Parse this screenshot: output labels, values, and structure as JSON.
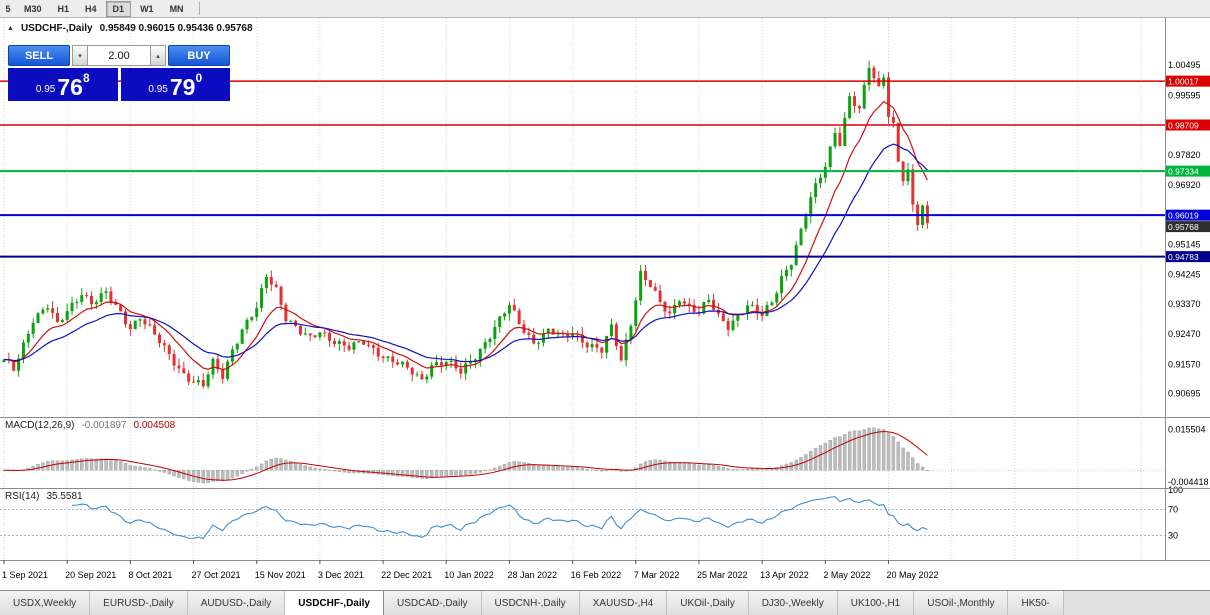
{
  "toolbar": {
    "timeframes": [
      {
        "label": "5",
        "active": false
      },
      {
        "label": "M30",
        "active": false
      },
      {
        "label": "H1",
        "active": false
      },
      {
        "label": "H4",
        "active": false
      },
      {
        "label": "D1",
        "active": true
      },
      {
        "label": "W1",
        "active": false
      },
      {
        "label": "MN",
        "active": false
      }
    ]
  },
  "chart": {
    "title_symbol": "USDCHF-,Daily",
    "title_ohlc": "0.95849 0.96015 0.95436 0.95768",
    "collapse_icon": "▲"
  },
  "trade_panel": {
    "sell_label": "SELL",
    "buy_label": "BUY",
    "lot_size": "2.00",
    "lot_decrease_icon": "▾",
    "lot_increase_icon": "▴",
    "sell_price_prefix": "0.95",
    "sell_price_big": "76",
    "sell_price_sup": "8",
    "buy_price_prefix": "0.95",
    "buy_price_big": "79",
    "buy_price_sup": "0"
  },
  "chart_data": {
    "type": "candlestick",
    "symbol": "USDCHF-",
    "period": "Daily",
    "ohlc_display": {
      "open": "0.95849",
      "high": "0.96015",
      "low": "0.95436",
      "close": "0.95768"
    },
    "y_axis": {
      "ticks": [
        1.00495,
        0.99595,
        0.9782,
        0.9692,
        0.95145,
        0.94245,
        0.9337,
        0.9247,
        0.9157,
        0.90695
      ],
      "price_min": 0.9,
      "price_max": 1.019
    },
    "x_labels": [
      "1 Sep 2021",
      "20 Sep 2021",
      "8 Oct 2021",
      "27 Oct 2021",
      "15 Nov 2021",
      "3 Dec 2021",
      "22 Dec 2021",
      "10 Jan 2022",
      "28 Jan 2022",
      "16 Feb 2022",
      "7 Mar 2022",
      "25 Mar 2022",
      "13 Apr 2022",
      "2 May 2022",
      "20 May 2022"
    ],
    "bars_per_label": 13,
    "bar_count": 191,
    "price_path_anchors": [
      [
        0,
        0.9165
      ],
      [
        2,
        0.914
      ],
      [
        6,
        0.9295
      ],
      [
        9,
        0.933
      ],
      [
        11,
        0.927
      ],
      [
        13,
        0.9315
      ],
      [
        16,
        0.9375
      ],
      [
        18,
        0.934
      ],
      [
        21,
        0.9365
      ],
      [
        24,
        0.931
      ],
      [
        26,
        0.927
      ],
      [
        28,
        0.93
      ],
      [
        31,
        0.924
      ],
      [
        34,
        0.9185
      ],
      [
        37,
        0.913
      ],
      [
        39,
        0.9105
      ],
      [
        41,
        0.909
      ],
      [
        43,
        0.916
      ],
      [
        45,
        0.9125
      ],
      [
        47,
        0.9205
      ],
      [
        49,
        0.926
      ],
      [
        52,
        0.932
      ],
      [
        54,
        0.942
      ],
      [
        56,
        0.9385
      ],
      [
        58,
        0.93
      ],
      [
        61,
        0.925
      ],
      [
        63,
        0.923
      ],
      [
        65,
        0.9255
      ],
      [
        68,
        0.923
      ],
      [
        71,
        0.9205
      ],
      [
        74,
        0.922
      ],
      [
        78,
        0.9185
      ],
      [
        81,
        0.916
      ],
      [
        84,
        0.913
      ],
      [
        86,
        0.911
      ],
      [
        88,
        0.916
      ],
      [
        91,
        0.9165
      ],
      [
        94,
        0.913
      ],
      [
        97,
        0.9185
      ],
      [
        100,
        0.9245
      ],
      [
        104,
        0.933
      ],
      [
        106,
        0.928
      ],
      [
        109,
        0.9225
      ],
      [
        112,
        0.9255
      ],
      [
        115,
        0.9235
      ],
      [
        117,
        0.9255
      ],
      [
        120,
        0.922
      ],
      [
        123,
        0.9195
      ],
      [
        125,
        0.9265
      ],
      [
        127,
        0.917
      ],
      [
        129,
        0.9285
      ],
      [
        131,
        0.943
      ],
      [
        133,
        0.939
      ],
      [
        135,
        0.9335
      ],
      [
        137,
        0.9305
      ],
      [
        139,
        0.936
      ],
      [
        141,
        0.933
      ],
      [
        143,
        0.931
      ],
      [
        145,
        0.9345
      ],
      [
        147,
        0.93
      ],
      [
        149,
        0.9275
      ],
      [
        151,
        0.9305
      ],
      [
        153,
        0.933
      ],
      [
        156,
        0.93
      ],
      [
        158,
        0.9345
      ],
      [
        160,
        0.942
      ],
      [
        162,
        0.9465
      ],
      [
        164,
        0.955
      ],
      [
        166,
        0.965
      ],
      [
        168,
        0.972
      ],
      [
        169,
        0.9755
      ],
      [
        171,
        0.9855
      ],
      [
        172,
        0.982
      ],
      [
        174,
        0.995
      ],
      [
        176,
        0.991
      ],
      [
        178,
        1.0049
      ],
      [
        179,
        1.0015
      ],
      [
        180,
        0.9985
      ],
      [
        181,
        1.0025
      ],
      [
        182,
        0.9905
      ],
      [
        183,
        0.987
      ],
      [
        184,
        0.976
      ],
      [
        185,
        0.9705
      ],
      [
        186,
        0.9725
      ],
      [
        187,
        0.9625
      ],
      [
        188,
        0.958
      ],
      [
        189,
        0.963
      ],
      [
        190,
        0.9577
      ]
    ],
    "levels": [
      {
        "value": 1.00017,
        "label": "1.00017",
        "color": "#dd0000",
        "width": 1.5
      },
      {
        "value": 0.98709,
        "label": "0.98709",
        "color": "#dd0000",
        "width": 1.5
      },
      {
        "value": 0.97334,
        "label": "0.97334",
        "color": "#00b33c",
        "width": 2
      },
      {
        "value": 0.96019,
        "label": "0.96019",
        "color": "#0000dd",
        "width": 2
      },
      {
        "value": 0.94783,
        "label": "0.94783",
        "color": "#00008b",
        "width": 2
      }
    ],
    "current_price": {
      "value": 0.95768,
      "label": "0.95768",
      "color": "#2f2f2f"
    },
    "indicators": {
      "macd": {
        "title": "MACD(12,26,9)",
        "fast": 12,
        "slow": 26,
        "signal": 9,
        "value": "-0.001897",
        "signal_value": "0.004508",
        "scale_max_label": "0.015504",
        "scale_min_label": "-0.004418",
        "scale_max": 0.015504,
        "scale_min": -0.004418
      },
      "rsi": {
        "title": "RSI(14)",
        "period": 14,
        "value": "35.5581",
        "scale_labels": [
          100,
          70,
          30
        ],
        "level_lines": [
          70,
          30
        ]
      }
    },
    "colors": {
      "up": "#0fa00f",
      "down": "#e03232",
      "ma_fast": "#cc1111",
      "ma_slow": "#1111bb",
      "macd_hist": "#bdbdbd",
      "macd_hist_stroke": "#9a9a9a",
      "macd_signal": "#c00000",
      "rsi_line": "#3f8fce",
      "rsi_levels": "#9fb6d4",
      "grid": "#d4d4d4",
      "panel_border": "#8c8c8c"
    }
  },
  "tabbar": {
    "tabs": [
      {
        "label": "USDX,Weekly",
        "active": false
      },
      {
        "label": "EURUSD-,Daily",
        "active": false
      },
      {
        "label": "AUDUSD-,Daily",
        "active": false
      },
      {
        "label": "USDCHF-,Daily",
        "active": true
      },
      {
        "label": "USDCAD-,Daily",
        "active": false
      },
      {
        "label": "USDCNH-,Daily",
        "active": false
      },
      {
        "label": "XAUUSD-,H4",
        "active": false
      },
      {
        "label": "UKOil-,Daily",
        "active": false
      },
      {
        "label": "DJ30-,Weekly",
        "active": false
      },
      {
        "label": "UK100-,H1",
        "active": false
      },
      {
        "label": "USOil-,Monthly",
        "active": false
      },
      {
        "label": "HK50-",
        "active": false
      }
    ]
  }
}
